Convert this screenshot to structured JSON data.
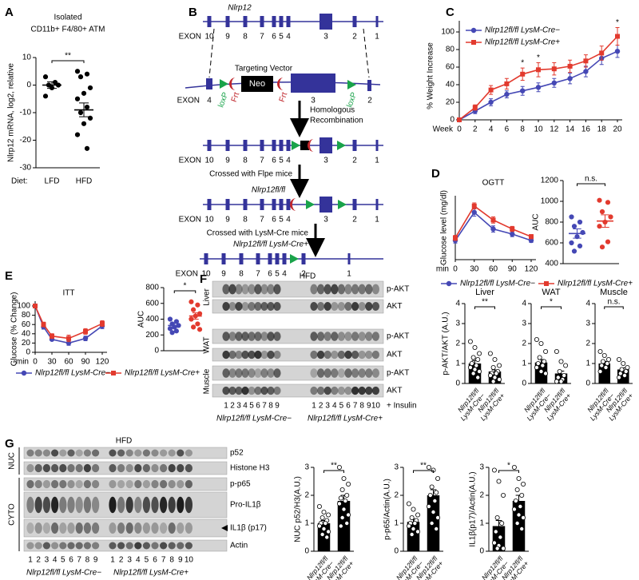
{
  "panels": [
    "A",
    "B",
    "C",
    "D",
    "E",
    "F",
    "G"
  ],
  "chart_data": [
    {
      "type": "dot",
      "title": "Isolated",
      "subtitle": "CD11b+ F4/80+ ATM",
      "ylabel": "Nlrp12 mRNA, log2, relative",
      "xlabel": "Diet:",
      "categories": [
        "LFD",
        "HFD"
      ],
      "colors": [
        "#000000",
        "#000000"
      ],
      "marker": "filled",
      "values": [
        [
          3,
          1,
          0,
          0,
          -1,
          -4
        ],
        [
          5,
          4,
          3,
          -1,
          -3,
          -5,
          -8,
          -10,
          -12,
          -14,
          -18,
          -23
        ]
      ],
      "means": [
        0,
        -9
      ],
      "errors": [
        1.2,
        2.5
      ],
      "ylim": [
        -30,
        10
      ],
      "yticks": [
        -30,
        -20,
        -10,
        0,
        10
      ],
      "significance": "**"
    },
    {
      "type": "line",
      "ylabel": "% Weight Increase",
      "xlabel": "Week",
      "x": [
        0,
        2,
        4,
        6,
        8,
        10,
        12,
        14,
        16,
        18,
        20
      ],
      "xlim": [
        0,
        20
      ],
      "xticks": [
        0,
        2,
        4,
        6,
        8,
        10,
        12,
        14,
        16,
        18,
        20
      ],
      "ylim": [
        0,
        100
      ],
      "yticks": [
        0,
        20,
        40,
        60,
        80,
        100
      ],
      "legend": "top-left",
      "markers": [
        "circle",
        "square"
      ],
      "series": [
        {
          "name": "Nlrp12fl/fl LysM-Cre−",
          "color": "#4548b5",
          "values": [
            0,
            10,
            20,
            29,
            33,
            37,
            42,
            47,
            55,
            70,
            78
          ],
          "errors": [
            0,
            3,
            4,
            4,
            5,
            5,
            5,
            6,
            6,
            7,
            7
          ]
        },
        {
          "name": "Nlrp12fl/fl LysM-Cre+",
          "color": "#e23a2e",
          "values": [
            0,
            14,
            34,
            41,
            52,
            57,
            58,
            61,
            67,
            76,
            95
          ],
          "errors": [
            0,
            3,
            5,
            6,
            7,
            8,
            7,
            7,
            7,
            8,
            10
          ]
        }
      ],
      "annotations": [
        {
          "x": 8,
          "text": "*"
        },
        {
          "x": 10,
          "text": "*"
        },
        {
          "x": 20,
          "text": "*"
        }
      ]
    },
    {
      "type": "line",
      "title": "OGTT",
      "ylabel": "Glucose level (mg/dl)",
      "xlabel": "min",
      "x": [
        0,
        30,
        60,
        90,
        120
      ],
      "xlim": [
        0,
        120
      ],
      "xticks": [
        0,
        30,
        60,
        90,
        120
      ],
      "ylim": [
        50,
        300
      ],
      "legend": "bottom",
      "markers": [
        "circle",
        "square"
      ],
      "series": [
        {
          "name": "Nlrp12fl/fl LysM-Cre−",
          "color": "#4548b5",
          "values": [
            125,
            235,
            170,
            150,
            125
          ],
          "errors": [
            10,
            15,
            12,
            10,
            8
          ]
        },
        {
          "name": "Nlrp12fl/fl LysM-Cre+",
          "color": "#e23a2e",
          "values": [
            135,
            260,
            205,
            170,
            140
          ],
          "errors": [
            10,
            12,
            12,
            10,
            8
          ]
        }
      ]
    },
    {
      "type": "dot",
      "ylabel": "AUC",
      "colors": [
        "#4548b5",
        "#e23a2e"
      ],
      "marker": "filled",
      "values": [
        [
          850,
          800,
          760,
          700,
          660,
          600,
          570,
          520
        ],
        [
          1010,
          990,
          900,
          850,
          800,
          760,
          610,
          560
        ]
      ],
      "means": [
        690,
        810
      ],
      "errors": [
        45,
        60
      ],
      "ylim": [
        400,
        1200
      ],
      "yticks": [
        400,
        600,
        800,
        1000,
        1200
      ],
      "significance": "n.s."
    },
    {
      "type": "line",
      "title": "ITT",
      "ylabel": "Glucose (% Change)",
      "xlabel": "min",
      "x": [
        0,
        15,
        30,
        60,
        90,
        120
      ],
      "xlim": [
        0,
        120
      ],
      "xticks": [
        0,
        30,
        60,
        90,
        120
      ],
      "ylim": [
        0,
        100
      ],
      "yticks": [
        0,
        20,
        40,
        60,
        80,
        100
      ],
      "legend": "bottom",
      "markers": [
        "circle",
        "square"
      ],
      "series": [
        {
          "name": "Nlrp12fl/fl LysM-Cre−",
          "color": "#4548b5",
          "values": [
            100,
            55,
            28,
            20,
            30,
            57
          ],
          "errors": [
            0,
            5,
            3,
            5,
            5,
            6
          ]
        },
        {
          "name": "Nlrp12fl/fl LysM-Cre+",
          "color": "#e23a2e",
          "values": [
            100,
            60,
            35,
            30,
            45,
            62
          ],
          "errors": [
            0,
            5,
            5,
            7,
            6,
            6
          ]
        }
      ]
    },
    {
      "type": "dot",
      "ylabel": "AUC",
      "colors": [
        "#4548b5",
        "#e23a2e"
      ],
      "marker": "filled",
      "values": [
        [
          400,
          370,
          340,
          320,
          300,
          280,
          250,
          230
        ],
        [
          620,
          580,
          520,
          470,
          440,
          400,
          340,
          300,
          270
        ]
      ],
      "means": [
        320,
        440
      ],
      "errors": [
        25,
        40
      ],
      "ylim": [
        0,
        800
      ],
      "yticks": [
        0,
        200,
        400,
        600,
        800
      ],
      "significance": "*"
    },
    {
      "type": "bar",
      "title": "Liver",
      "ylabel": "p-AKT/AKT (A.U.)",
      "categories": [
        "Nlrp12fl/fl LysM-Cre−",
        "Nlrp12fl/fl LysM-Cre+"
      ],
      "color": "#000000",
      "values": [
        1.0,
        0.6
      ],
      "errors": [
        0.15,
        0.08
      ],
      "points": [
        [
          2.1,
          1.8,
          1.5,
          1.3,
          1.2,
          1.0,
          0.9,
          0.8,
          0.7,
          0.6,
          0.5,
          0.3
        ],
        [
          1.5,
          1.2,
          0.9,
          0.8,
          0.6,
          0.5,
          0.5,
          0.4,
          0.3,
          0.2,
          0.1
        ]
      ],
      "ylim": [
        0,
        4
      ],
      "yticks": [
        0,
        1,
        2,
        3,
        4
      ],
      "significance": "**"
    },
    {
      "type": "bar",
      "title": "WAT",
      "categories": [
        "Nlrp12fl/fl LysM-Cre−",
        "Nlrp12fl/fl LysM-Cre+"
      ],
      "color": "#000000",
      "values": [
        1.05,
        0.5
      ],
      "errors": [
        0.15,
        0.12
      ],
      "points": [
        [
          2.2,
          2.0,
          1.6,
          1.3,
          1.1,
          1.0,
          0.9,
          0.8,
          0.6,
          0.5
        ],
        [
          1.6,
          1.1,
          0.9,
          0.6,
          0.4,
          0.3,
          0.2,
          0.1,
          0.1
        ]
      ],
      "ylim": [
        0,
        4
      ],
      "yticks": [
        0,
        1,
        2,
        3,
        4
      ],
      "significance": "*"
    },
    {
      "type": "bar",
      "title": "Muscle",
      "categories": [
        "Nlrp12fl/fl LysM-Cre−",
        "Nlrp12fl/fl LysM-Cre+"
      ],
      "color": "#000000",
      "values": [
        1.0,
        0.7
      ],
      "errors": [
        0.1,
        0.08
      ],
      "points": [
        [
          1.6,
          1.4,
          1.2,
          1.1,
          1.0,
          0.9,
          0.8,
          0.6
        ],
        [
          1.2,
          1.0,
          0.8,
          0.7,
          0.6,
          0.5,
          0.4,
          0.3
        ]
      ],
      "ylim": [
        0,
        4
      ],
      "yticks": [
        0,
        1,
        2,
        3,
        4
      ],
      "significance": "n.s."
    },
    {
      "type": "bar",
      "ylabel": "NUC p52/H3(A.U.)",
      "categories": [
        "Nlrp12fl/fl LysM-Cre−",
        "Nlrp12fl/fl LysM-Cre+"
      ],
      "color": "#000000",
      "values": [
        1.0,
        1.8
      ],
      "errors": [
        0.1,
        0.2
      ],
      "points": [
        [
          1.6,
          1.4,
          1.3,
          1.2,
          1.1,
          1.0,
          1.0,
          0.9,
          0.8,
          0.7,
          0.6,
          0.5
        ],
        [
          3.0,
          2.6,
          2.4,
          2.2,
          2.0,
          1.9,
          1.8,
          1.7,
          1.5,
          1.3,
          1.2,
          1.0,
          0.9
        ]
      ],
      "ylim": [
        0,
        3
      ],
      "yticks": [
        0,
        1,
        2,
        3
      ],
      "significance": "**"
    },
    {
      "type": "bar",
      "ylabel": "p-p65/Actin(A.U.)",
      "categories": [
        "Nlrp12fl/fl LysM-Cre−",
        "Nlrp12fl/fl LysM-Cre+"
      ],
      "color": "#000000",
      "values": [
        1.05,
        2.0
      ],
      "errors": [
        0.1,
        0.2
      ],
      "points": [
        [
          1.7,
          1.5,
          1.3,
          1.2,
          1.1,
          1.0,
          1.0,
          0.9,
          0.8,
          0.7,
          0.6
        ],
        [
          3.0,
          2.9,
          2.6,
          2.3,
          2.1,
          2.0,
          1.8,
          1.6,
          1.4,
          1.2,
          1.0,
          0.8
        ]
      ],
      "ylim": [
        0,
        3
      ],
      "yticks": [
        0,
        1,
        2,
        3
      ],
      "significance": "**"
    },
    {
      "type": "bar",
      "ylabel": "IL1β(p17)/Actin(A.U.)",
      "categories": [
        "Nlrp12fl/fl LysM-Cre−",
        "Nlrp12fl/fl LysM-Cre+"
      ],
      "color": "#000000",
      "values": [
        0.9,
        1.8
      ],
      "errors": [
        0.2,
        0.2
      ],
      "points": [
        [
          2.9,
          2.5,
          2.0,
          1.2,
          1.0,
          0.7,
          0.5,
          0.3,
          0.2,
          0.1,
          0.1
        ],
        [
          3.0,
          2.6,
          2.4,
          2.2,
          2.0,
          1.8,
          1.6,
          1.5,
          1.3,
          1.2,
          1.0,
          0.8
        ]
      ],
      "ylim": [
        0,
        3
      ],
      "yticks": [
        0,
        1,
        2,
        3
      ],
      "significance": "*"
    }
  ],
  "diagram": {
    "gene": "Nlrp12",
    "exon_label": "EXON",
    "wildtype_exons": [
      10,
      9,
      8,
      7,
      6,
      5,
      4,
      3,
      2,
      1
    ],
    "targeting_vector": "Targeting Vector",
    "vector_exons": [
      4,
      3,
      2
    ],
    "cassette": "Neo",
    "loxp": "loxP",
    "frt": "Frt",
    "step1": [
      "Homologous",
      "Recombination"
    ],
    "recombined_exons": [
      10,
      9,
      8,
      7,
      6,
      5,
      4,
      3,
      2,
      1
    ],
    "step2": "Crossed with Flpe mice",
    "floxed_name": "Nlrp12fl/fl",
    "floxed_exons": [
      10,
      9,
      8,
      7,
      6,
      5,
      4,
      3,
      2,
      1
    ],
    "step3": "Crossed with LysM-Cre mice",
    "deleted_name": "Nlrp12fl/fl LysM-Cre+",
    "deleted_exons": [
      10,
      9,
      8,
      7,
      6,
      5,
      4,
      2,
      1
    ]
  },
  "blot_f": {
    "title": "HFD",
    "tissues": [
      {
        "name": "Liver",
        "bands": [
          "p-AKT",
          "AKT"
        ]
      },
      {
        "name": "WAT",
        "bands": [
          "p-AKT",
          "AKT"
        ]
      },
      {
        "name": "Muscle",
        "bands": [
          "p-AKT",
          "AKT"
        ]
      }
    ],
    "lanes": [
      [
        1,
        2,
        3,
        4,
        5,
        6,
        7,
        8,
        9
      ],
      [
        1,
        2,
        3,
        4,
        5,
        6,
        7,
        8,
        9,
        10
      ]
    ],
    "groups": [
      "Nlrp12fl/fl LysM-Cre−",
      "Nlrp12fl/fl LysM-Cre+"
    ],
    "treatment": "+ Insulin"
  },
  "blot_g": {
    "title": "HFD",
    "fractions": [
      {
        "name": "NUC",
        "bands": [
          "p52",
          "Histone H3"
        ]
      },
      {
        "name": "CYTO",
        "bands": [
          "p-p65",
          "Pro-IL1β",
          "IL1β (p17)",
          "Actin"
        ]
      }
    ],
    "lanes": [
      [
        1,
        2,
        3,
        4,
        5,
        6,
        7,
        8,
        9
      ],
      [
        1,
        2,
        3,
        4,
        5,
        6,
        7,
        8,
        9,
        10
      ]
    ],
    "groups": [
      "Nlrp12fl/fl LysM-Cre−",
      "Nlrp12fl/fl LysM-Cre+"
    ]
  }
}
